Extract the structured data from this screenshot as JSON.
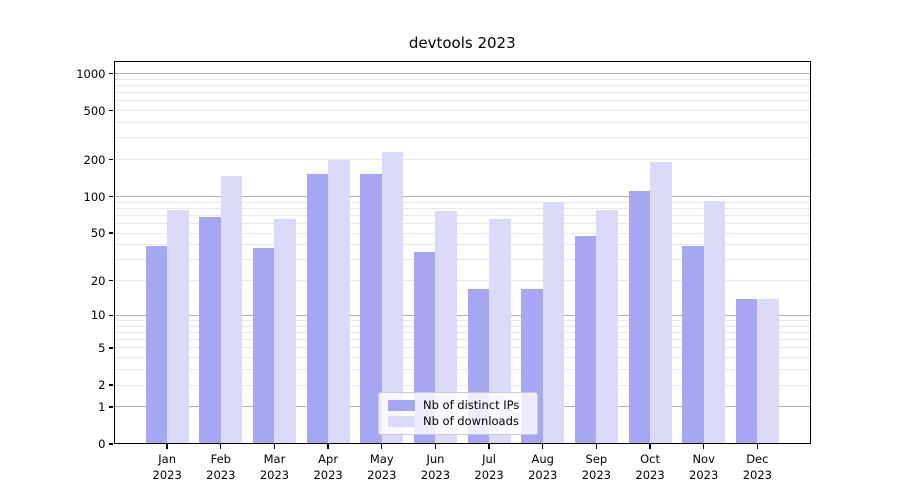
{
  "title": "devtools 2023",
  "colors": {
    "bar_distinct_ips": "#a6a6f2",
    "bar_downloads": "#dbdbf9",
    "grid_major": "#b0b0b0",
    "grid_minor": "#e9e9e9",
    "axis": "#000000",
    "legend_border": "#cccccc"
  },
  "legend": {
    "items": [
      {
        "label": "Nb of distinct IPs"
      },
      {
        "label": "Nb of downloads"
      }
    ]
  },
  "chart_data": {
    "type": "bar",
    "title": "devtools 2023",
    "scale": "log10(1+y) (symlog-like, 0 at baseline)",
    "grid": true,
    "legend_position": "lower center",
    "categories": [
      {
        "month": "Jan",
        "year": "2023"
      },
      {
        "month": "Feb",
        "year": "2023"
      },
      {
        "month": "Mar",
        "year": "2023"
      },
      {
        "month": "Apr",
        "year": "2023"
      },
      {
        "month": "May",
        "year": "2023"
      },
      {
        "month": "Jun",
        "year": "2023"
      },
      {
        "month": "Jul",
        "year": "2023"
      },
      {
        "month": "Aug",
        "year": "2023"
      },
      {
        "month": "Sep",
        "year": "2023"
      },
      {
        "month": "Oct",
        "year": "2023"
      },
      {
        "month": "Nov",
        "year": "2023"
      },
      {
        "month": "Dec",
        "year": "2023"
      }
    ],
    "series": [
      {
        "name": "Nb of distinct IPs",
        "color": "#a6a6f2",
        "values": [
          39,
          68,
          38,
          152,
          152,
          35,
          17,
          17,
          47,
          110,
          39,
          14
        ]
      },
      {
        "name": "Nb of downloads",
        "color": "#dbdbf9",
        "values": [
          78,
          148,
          66,
          200,
          230,
          76,
          66,
          90,
          77,
          190,
          92,
          14
        ]
      }
    ],
    "y_ticks": [
      0,
      1,
      2,
      5,
      10,
      20,
      50,
      100,
      200,
      500,
      1000
    ],
    "y_grid_major": [
      1,
      10,
      100,
      1000
    ],
    "y_grid_minor": [
      2,
      3,
      4,
      5,
      6,
      7,
      8,
      9,
      20,
      30,
      40,
      50,
      60,
      70,
      80,
      90,
      200,
      300,
      400,
      500,
      600,
      700,
      800,
      900
    ],
    "ylim": [
      0,
      1270
    ],
    "xlabel": "",
    "ylabel": ""
  }
}
